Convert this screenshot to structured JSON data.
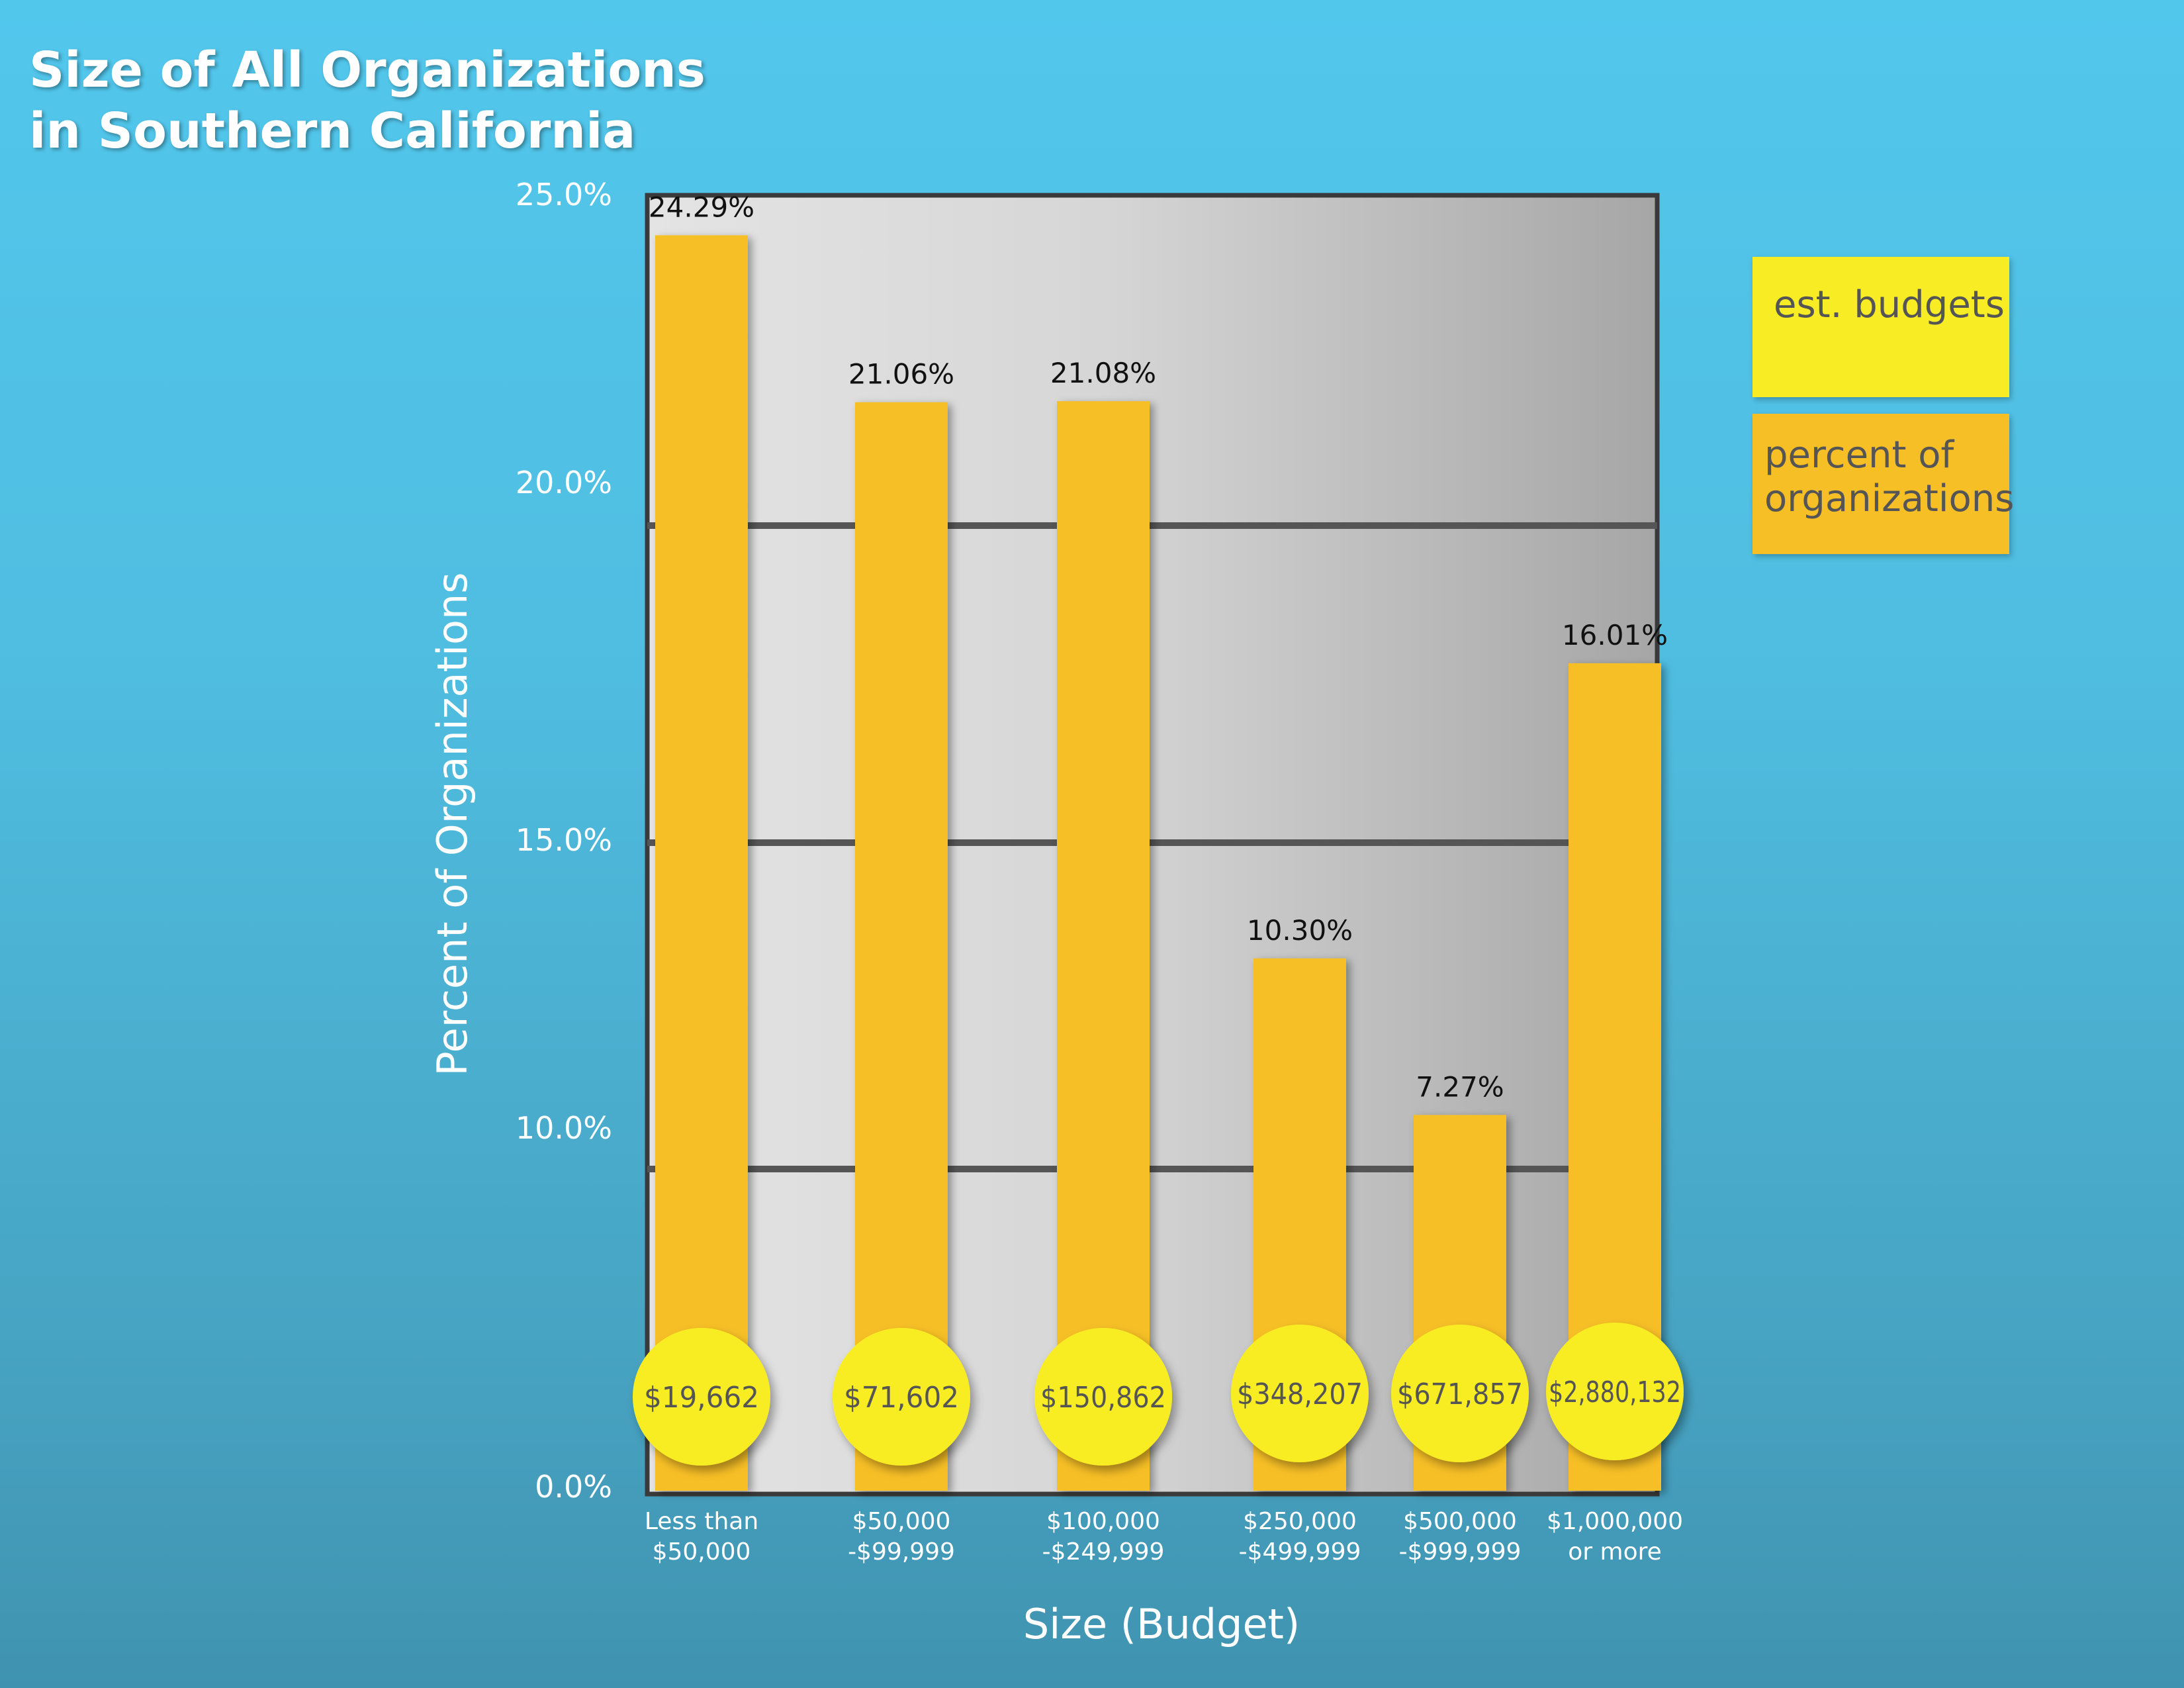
{
  "title_lines": [
    "Size of All Organizations",
    "in Southern California"
  ],
  "legend": {
    "budgets_label": "est. budgets",
    "percent_label": "percent of organizations",
    "budgets_color": "#f8ec24",
    "percent_color": "#f7bf26"
  },
  "chart_data": {
    "type": "bar",
    "title": "Size of All Organizations in Southern California",
    "xlabel": "Size (Budget)",
    "ylabel": "Percent of Organizations",
    "ylim": [
      0,
      25
    ],
    "yticks": [
      "0.0%",
      "10.0%",
      "15.0%",
      "20.0%",
      "25.0%"
    ],
    "grid": true,
    "legend_position": "right",
    "categories": [
      [
        "Less than",
        "$50,000"
      ],
      [
        "$50,000",
        "-$99,999"
      ],
      [
        "$100,000",
        "-$249,999"
      ],
      [
        "$250,000",
        "-$499,999"
      ],
      [
        "$500,000",
        "-$999,999"
      ],
      [
        "$1,000,000",
        "or more"
      ]
    ],
    "series": [
      {
        "name": "percent of organizations",
        "values": [
          24.29,
          21.06,
          21.08,
          10.3,
          7.27,
          16.01
        ],
        "labels": [
          "24.29%",
          "21.06%",
          "21.08%",
          "10.30%",
          "7.27%",
          "16.01%"
        ]
      },
      {
        "name": "est. budgets",
        "labels": [
          "$19,662",
          "$71,602",
          "$150,862",
          "$348,207",
          "$671,857",
          "$2,880,132"
        ]
      }
    ]
  }
}
